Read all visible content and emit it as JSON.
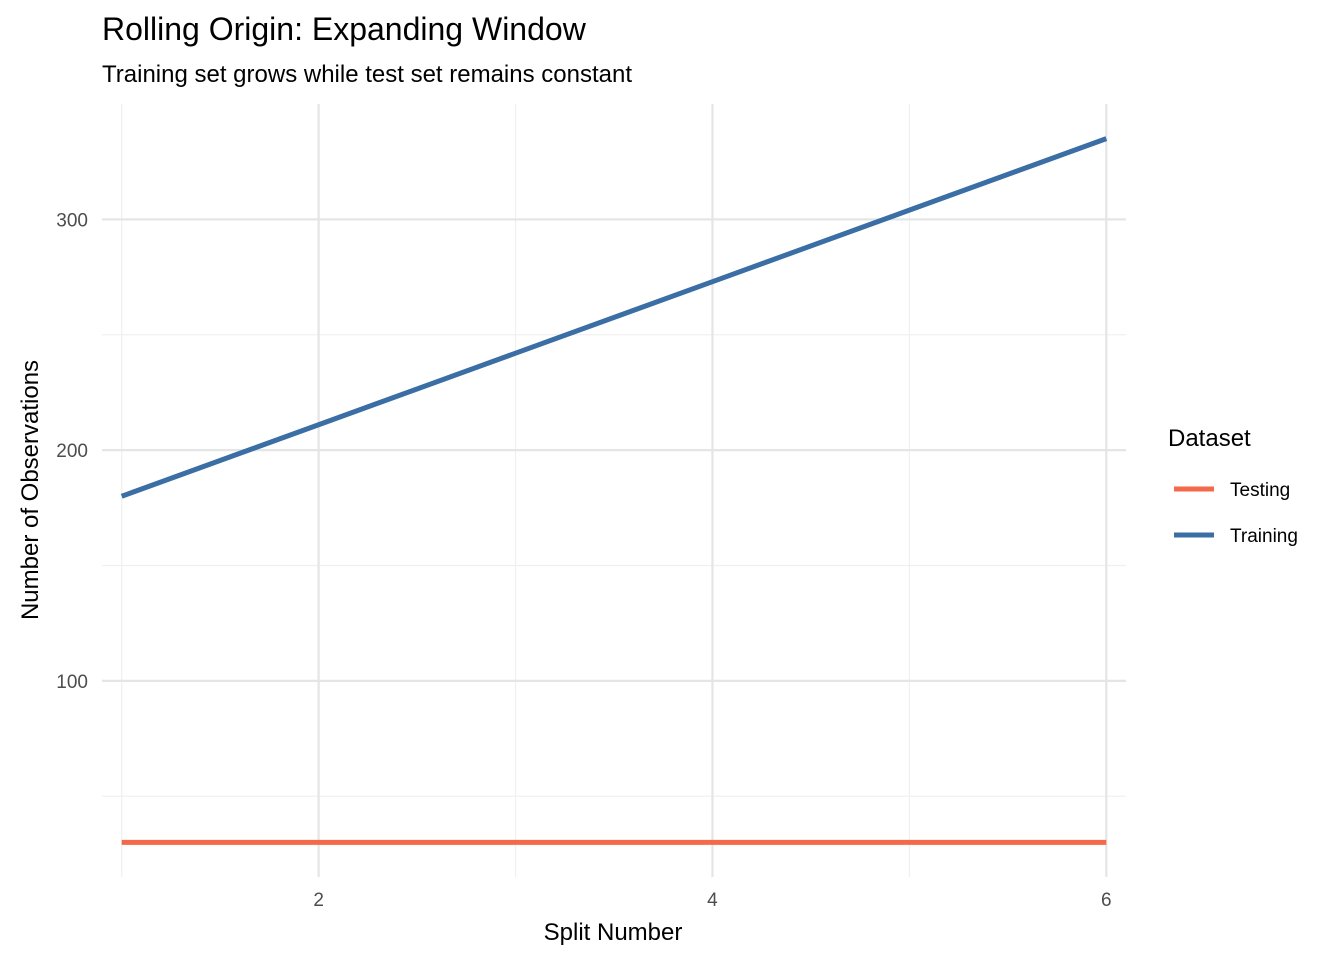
{
  "chart_data": {
    "type": "line",
    "title": "Rolling Origin: Expanding Window",
    "subtitle": "Training set grows while test set remains constant",
    "xlabel": "Split Number",
    "ylabel": "Number of Observations",
    "x": [
      1,
      2,
      3,
      4,
      5,
      6
    ],
    "xlim": [
      0.9,
      6.1
    ],
    "ylim": [
      15,
      350
    ],
    "x_ticks": [
      2,
      4,
      6
    ],
    "x_minor_ticks": [
      1,
      3,
      5
    ],
    "y_ticks": [
      100,
      200,
      300
    ],
    "y_minor_ticks": [
      50,
      150,
      250
    ],
    "grid": true,
    "legend": {
      "title": "Dataset",
      "position": "right"
    },
    "series": [
      {
        "name": "Testing",
        "color": "#F4694A",
        "values": [
          30,
          30,
          30,
          30,
          30,
          30
        ]
      },
      {
        "name": "Training",
        "color": "#3A6EA5",
        "values": [
          180,
          211,
          242,
          273,
          304,
          335
        ]
      }
    ]
  }
}
